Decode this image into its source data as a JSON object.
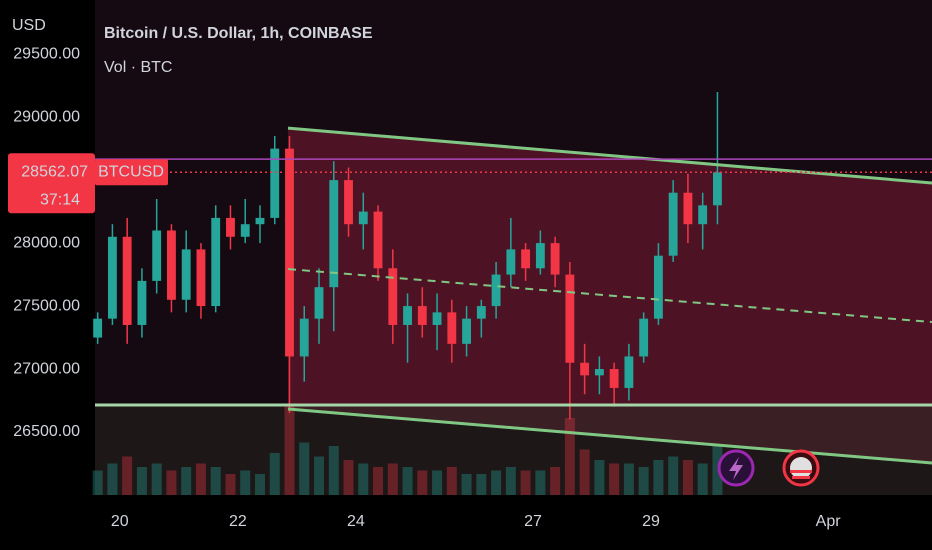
{
  "chart_data": {
    "type": "candlestick",
    "title": "Bitcoin / U.S. Dollar, 1h, COINBASE",
    "subtitle": "Vol · BTC",
    "y_axis_label": "USD",
    "symbol_tag": "BTCUSD",
    "last_price": 28562.07,
    "countdown": "37:14",
    "up_color": "#26a69a",
    "down_color": "#f23645",
    "x": [
      19.625,
      19.875,
      20.125,
      20.375,
      20.625,
      20.875,
      21.125,
      21.375,
      21.625,
      21.875,
      22.125,
      22.375,
      22.625,
      22.875,
      23.125,
      23.375,
      23.625,
      23.875,
      24.125,
      24.375,
      24.625,
      24.875,
      25.125,
      25.375,
      25.625,
      25.875,
      26.125,
      26.375,
      26.625,
      26.875,
      27.125,
      27.375,
      27.625,
      27.875,
      28.125,
      28.375,
      28.625,
      28.875,
      29.125,
      29.375,
      29.625,
      29.875,
      30.125
    ],
    "open": [
      27250,
      27400,
      28050,
      27350,
      27700,
      28100,
      27550,
      27950,
      27500,
      28200,
      28050,
      28150,
      28200,
      28750,
      27100,
      27400,
      27650,
      28500,
      28150,
      28250,
      27800,
      27350,
      27500,
      27350,
      27450,
      27200,
      27400,
      27500,
      27750,
      27950,
      27800,
      28000,
      27750,
      27050,
      26950,
      27000,
      26850,
      27100,
      27400,
      27900,
      28400,
      28150,
      28300
    ],
    "high": [
      27450,
      28150,
      28200,
      27800,
      28350,
      28150,
      28100,
      28000,
      28300,
      28300,
      28350,
      28300,
      28850,
      28850,
      27500,
      27800,
      28650,
      28600,
      28400,
      28300,
      27950,
      27600,
      27650,
      27600,
      27550,
      27500,
      27550,
      27850,
      28200,
      28000,
      28100,
      28050,
      27850,
      27200,
      27100,
      27050,
      27200,
      27450,
      28000,
      28500,
      28550,
      28400,
      29200
    ],
    "low": [
      27200,
      27350,
      27200,
      27250,
      27600,
      27450,
      27450,
      27400,
      27450,
      27950,
      28000,
      28000,
      28150,
      26650,
      26900,
      27200,
      27300,
      28050,
      27950,
      27700,
      27200,
      27050,
      27250,
      27150,
      27050,
      27100,
      27250,
      27400,
      27650,
      27700,
      27750,
      27650,
      26600,
      26800,
      26800,
      26700,
      26750,
      27050,
      27350,
      27850,
      28000,
      27950,
      28150
    ],
    "close": [
      27400,
      28050,
      27350,
      27700,
      28100,
      27550,
      27950,
      27500,
      28200,
      28050,
      28150,
      28200,
      28750,
      27100,
      27400,
      27650,
      28500,
      28150,
      28250,
      27800,
      27350,
      27500,
      27350,
      27450,
      27200,
      27400,
      27500,
      27750,
      27950,
      27800,
      28000,
      27750,
      27050,
      26950,
      27000,
      26850,
      27100,
      27400,
      27900,
      28400,
      28150,
      28300,
      28562.07
    ],
    "volume": [
      700,
      900,
      1100,
      800,
      900,
      700,
      800,
      900,
      800,
      600,
      700,
      600,
      1200,
      2600,
      1500,
      1100,
      1400,
      1000,
      900,
      800,
      900,
      800,
      700,
      700,
      800,
      600,
      600,
      700,
      800,
      700,
      700,
      800,
      2200,
      1300,
      1000,
      900,
      900,
      800,
      1000,
      1100,
      1000,
      900,
      1400
    ],
    "volume_lim": [
      0,
      4000
    ],
    "xlim": [
      19.58,
      33.76
    ],
    "xticks": [
      20,
      22,
      24,
      27,
      29,
      {
        "value": 32,
        "label": "Apr"
      }
    ],
    "ylim": [
      26000,
      29930
    ],
    "yticks": [
      {
        "value": 26500,
        "label": "26500.00"
      },
      {
        "value": 27000,
        "label": "27000.00"
      },
      {
        "value": 27500,
        "label": "27500.00"
      },
      {
        "value": 28000,
        "label": "28000.00"
      },
      {
        "value": 29000,
        "label": "29000.00"
      },
      {
        "value": 29500,
        "label": "29500.00"
      }
    ],
    "drawings": [
      {
        "x": [
          22.85,
          33.76
        ],
        "y": [
          28913,
          28477
        ],
        "color": "#81c784",
        "dash": false
      },
      {
        "x": [
          22.85,
          33.76
        ],
        "y": [
          27794,
          27373
        ],
        "color": "#81c784",
        "dash": true
      },
      {
        "x": [
          22.85,
          33.76
        ],
        "y": [
          26683,
          26254
        ],
        "color": "#81c784",
        "dash": false
      },
      {
        "x": [
          19.58,
          33.76
        ],
        "y": [
          26715,
          26715
        ],
        "color": "#a5d6a7",
        "dash": false
      },
      {
        "x": [
          19.58,
          33.76
        ],
        "y": [
          28667,
          28667
        ],
        "color": "#ab47bc",
        "dash": false
      }
    ]
  }
}
